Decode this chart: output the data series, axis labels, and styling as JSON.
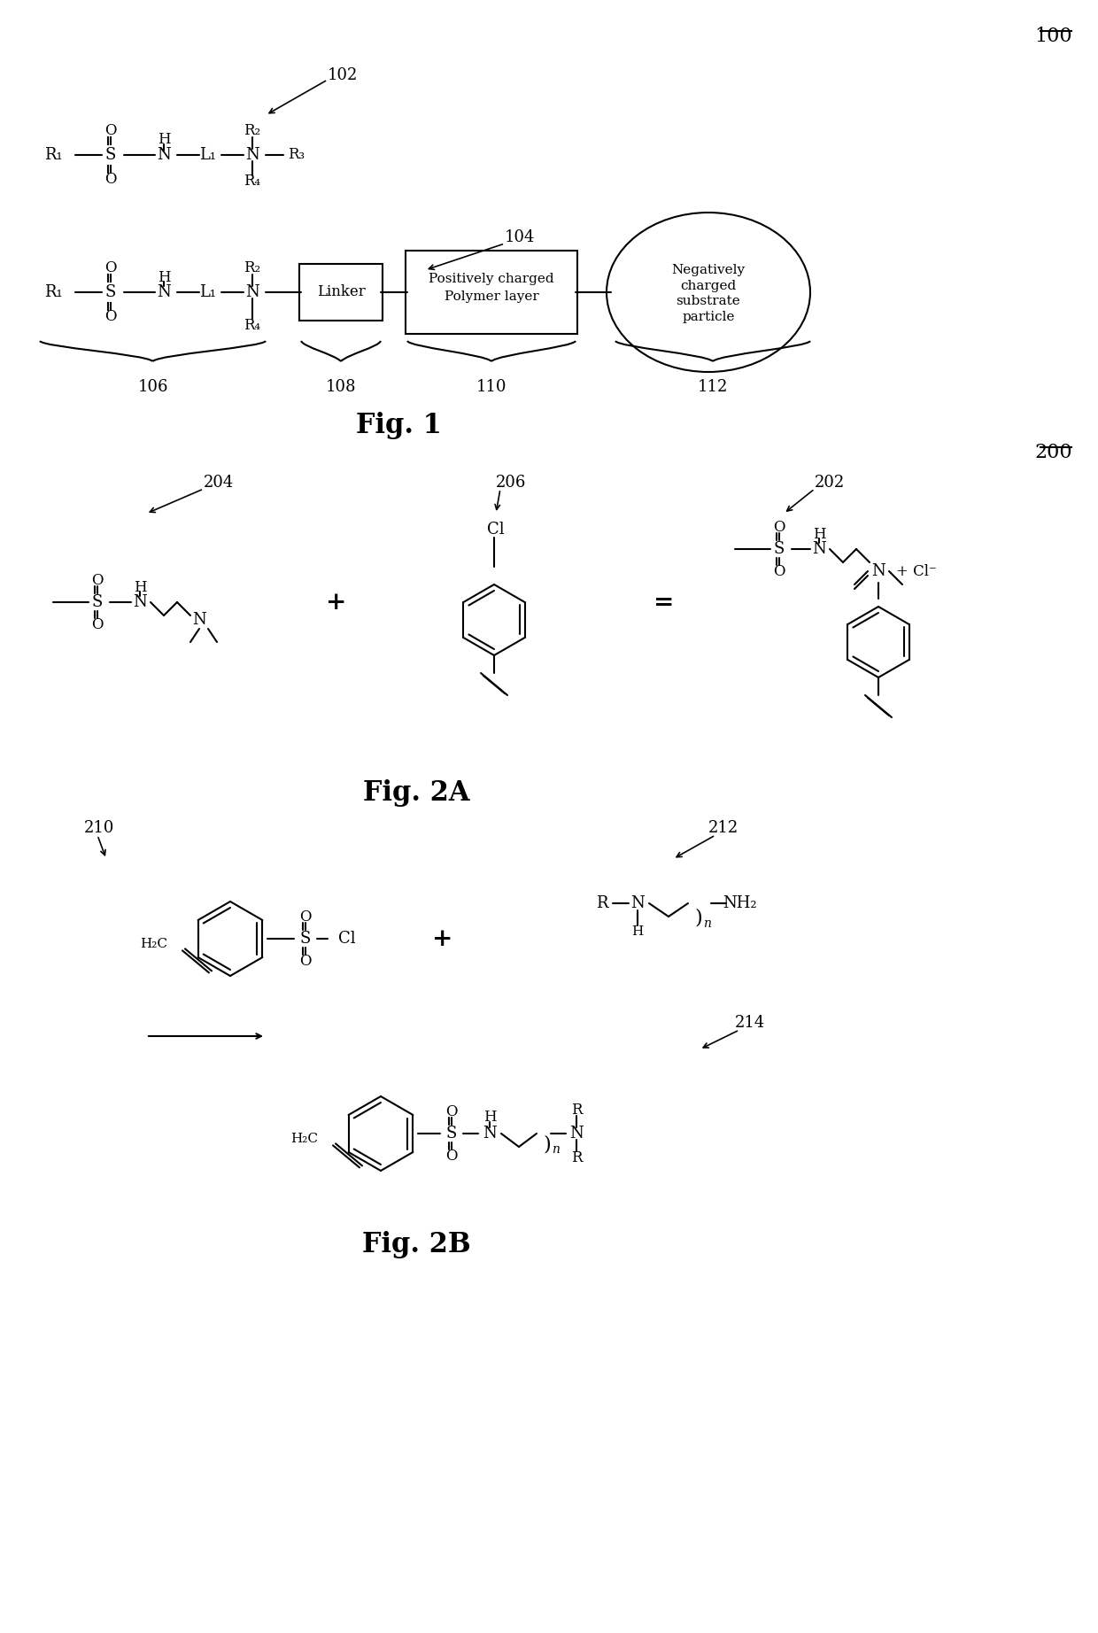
{
  "bg_color": "#ffffff",
  "text_color": "#000000",
  "fig_label": "100",
  "fig2_label": "200",
  "fig1_caption": "Fig. 1",
  "fig2a_caption": "Fig. 2A",
  "fig2b_caption": "Fig. 2B",
  "label_102": "102",
  "label_104": "104",
  "label_106": "106",
  "label_108": "108",
  "label_110": "110",
  "label_112": "112",
  "label_202": "202",
  "label_204": "204",
  "label_206": "206",
  "label_210": "210",
  "label_212": "212",
  "label_214": "214"
}
